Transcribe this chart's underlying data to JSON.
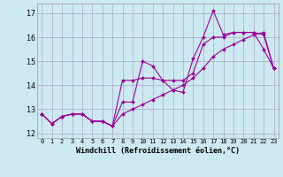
{
  "xlabel": "Windchill (Refroidissement éolien,°C)",
  "x": [
    0,
    1,
    2,
    3,
    4,
    5,
    6,
    7,
    8,
    9,
    10,
    11,
    12,
    13,
    14,
    15,
    16,
    17,
    18,
    19,
    20,
    21,
    22,
    23
  ],
  "line1": [
    12.8,
    12.4,
    12.7,
    12.8,
    12.8,
    12.5,
    12.5,
    12.3,
    13.3,
    13.3,
    15.0,
    14.8,
    14.2,
    13.8,
    13.7,
    15.1,
    16.0,
    17.1,
    16.1,
    16.2,
    16.2,
    16.2,
    15.5,
    14.7
  ],
  "line2": [
    12.8,
    12.4,
    12.7,
    12.8,
    12.8,
    12.5,
    12.5,
    12.3,
    14.2,
    14.2,
    14.3,
    14.3,
    14.2,
    14.2,
    14.2,
    14.5,
    15.7,
    16.0,
    16.0,
    16.2,
    16.2,
    16.2,
    16.1,
    14.7
  ],
  "line3": [
    12.8,
    12.4,
    12.7,
    12.8,
    12.8,
    12.5,
    12.5,
    12.3,
    12.8,
    13.0,
    13.2,
    13.4,
    13.6,
    13.8,
    14.0,
    14.3,
    14.7,
    15.2,
    15.5,
    15.7,
    15.9,
    16.1,
    16.2,
    14.7
  ],
  "line_color": "#990099",
  "bg_color": "#cce8f0",
  "grid_color": "#aaaacc",
  "ylim": [
    11.8,
    17.4
  ],
  "xlim": [
    -0.5,
    23.5
  ],
  "yticks": [
    12,
    13,
    14,
    15,
    16,
    17
  ],
  "xticks": [
    0,
    1,
    2,
    3,
    4,
    5,
    6,
    7,
    8,
    9,
    10,
    11,
    12,
    13,
    14,
    15,
    16,
    17,
    18,
    19,
    20,
    21,
    22,
    23
  ],
  "figsize": [
    3.2,
    2.0
  ],
  "dpi": 100
}
